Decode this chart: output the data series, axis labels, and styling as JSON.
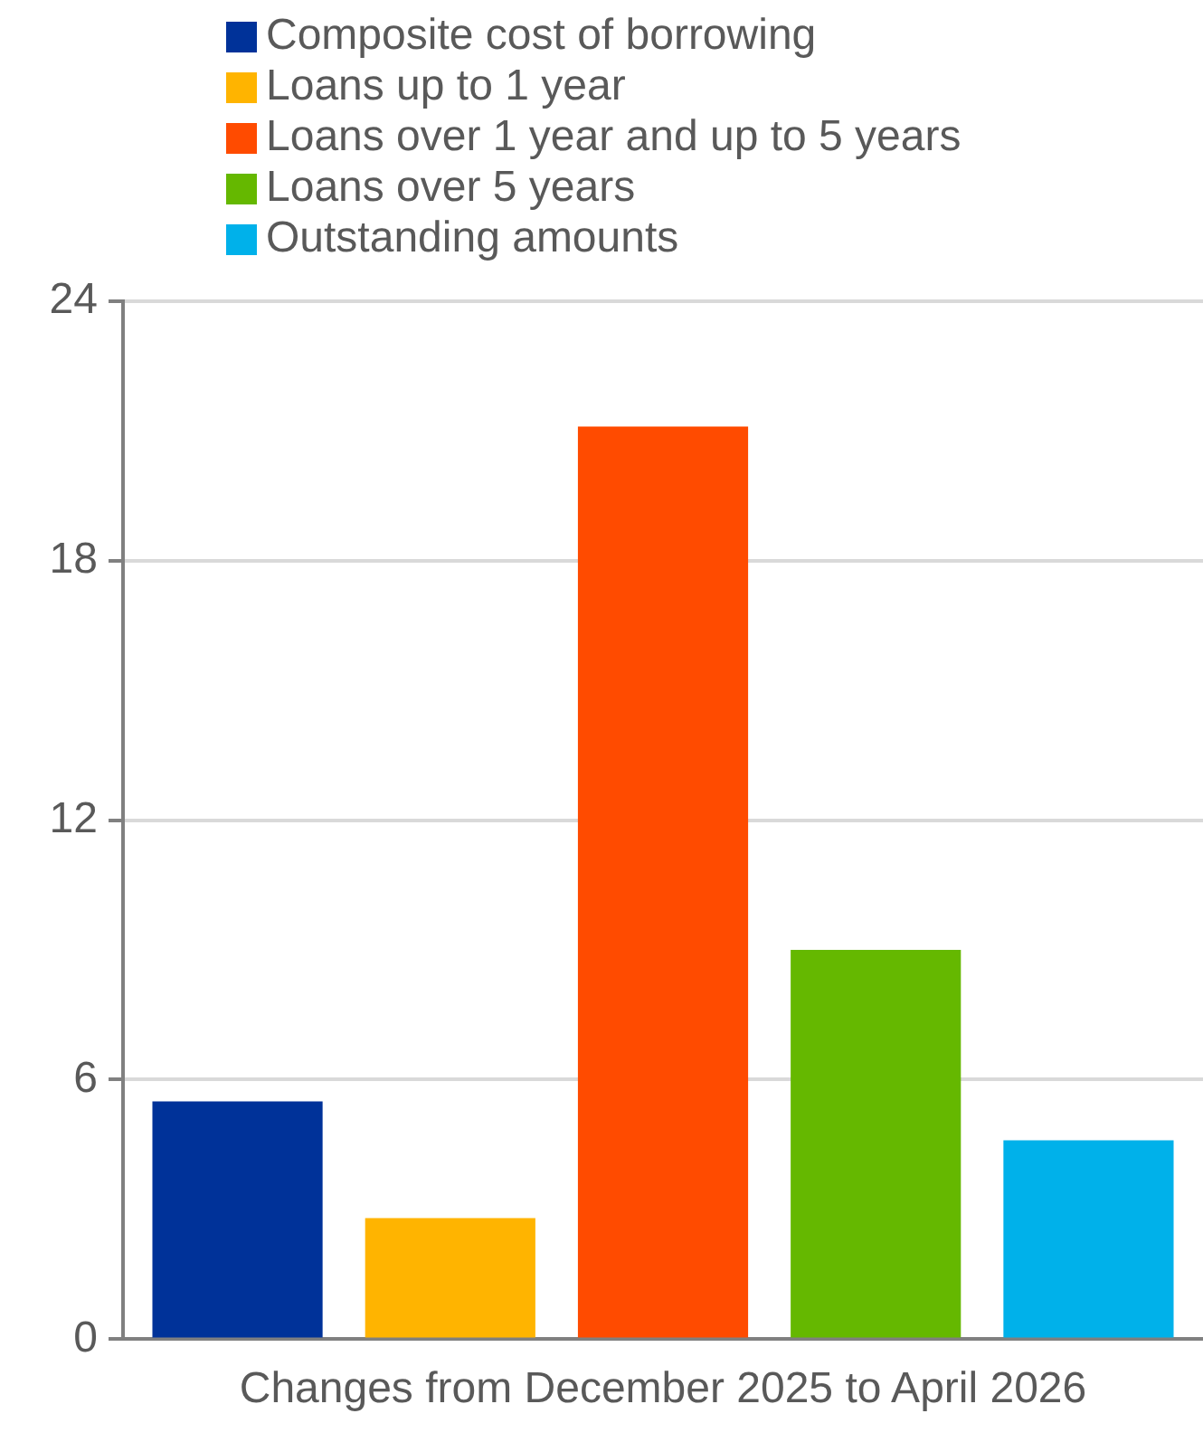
{
  "chart_data": {
    "type": "bar",
    "categories": [
      "Changes from December 2025 to April 2026"
    ],
    "series": [
      {
        "name": "Composite cost of borrowing",
        "color": "#003299",
        "values": [
          5.5
        ]
      },
      {
        "name": "Loans up to 1 year",
        "color": "#ffb400",
        "values": [
          2.8
        ]
      },
      {
        "name": "Loans over 1 year and up to 5 years",
        "color": "#ff4b00",
        "values": [
          21.1
        ]
      },
      {
        "name": "Loans over 5 years",
        "color": "#65b800",
        "values": [
          9.0
        ]
      },
      {
        "name": "Outstanding amounts",
        "color": "#00b1ea",
        "values": [
          4.6
        ]
      }
    ],
    "ylim": [
      0,
      24
    ],
    "yticks": [
      0,
      6,
      12,
      18,
      24
    ],
    "grid": "y",
    "legend": "top"
  }
}
